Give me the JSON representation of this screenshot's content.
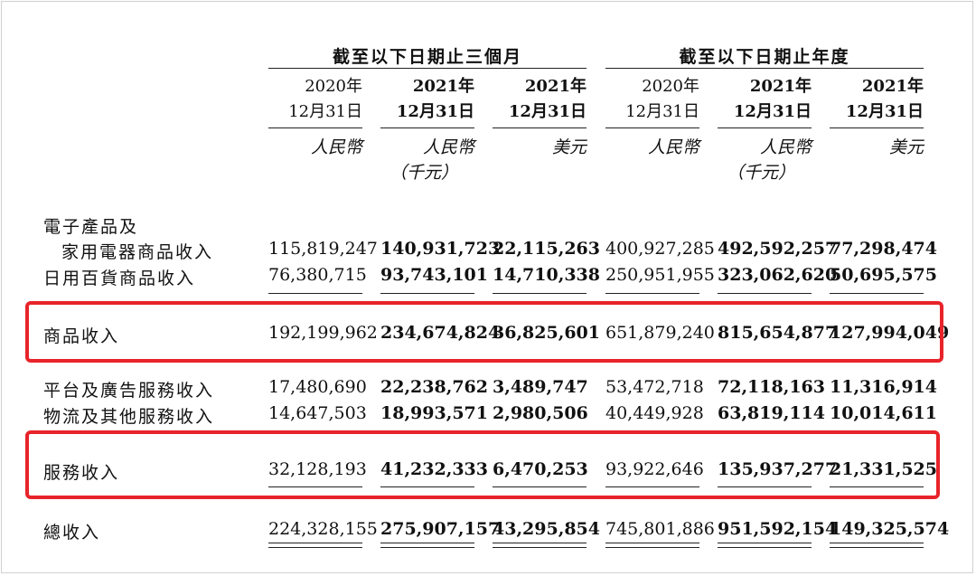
{
  "header": {
    "group_three_months": "截至以下日期止三個月",
    "group_year": "截至以下日期止年度",
    "columns": [
      {
        "year": "2020年",
        "date": "12月31日",
        "currency": "人民幣",
        "unit": "",
        "bold": false
      },
      {
        "year": "2021年",
        "date": "12月31日",
        "currency": "人民幣",
        "unit": "（千元）",
        "bold": true
      },
      {
        "year": "2021年",
        "date": "12月31日",
        "currency": "美元",
        "unit": "",
        "bold": true
      },
      {
        "year": "2020年",
        "date": "12月31日",
        "currency": "人民幣",
        "unit": "",
        "bold": false
      },
      {
        "year": "2021年",
        "date": "12月31日",
        "currency": "人民幣",
        "unit": "（千元）",
        "bold": true
      },
      {
        "year": "2021年",
        "date": "12月31日",
        "currency": "美元",
        "unit": "",
        "bold": true
      }
    ]
  },
  "rows": {
    "electronics_line1": {
      "label": "電子產品及"
    },
    "electronics": {
      "label": "家用電器商品收入",
      "values": [
        "115,819,247",
        "140,931,723",
        "22,115,263",
        "400,927,285",
        "492,592,257",
        "77,298,474"
      ]
    },
    "general": {
      "label": "日用百貨商品收入",
      "values": [
        "76,380,715",
        "93,743,101",
        "14,710,338",
        "250,951,955",
        "323,062,620",
        "50,695,575"
      ]
    },
    "product": {
      "label": "商品收入",
      "values": [
        "192,199,962",
        "234,674,824",
        "36,825,601",
        "651,879,240",
        "815,654,877",
        "127,994,049"
      ]
    },
    "platform": {
      "label": "平台及廣告服務收入",
      "values": [
        "17,480,690",
        "22,238,762",
        "3,489,747",
        "53,472,718",
        "72,118,163",
        "11,316,914"
      ]
    },
    "logistics": {
      "label": "物流及其他服務收入",
      "values": [
        "14,647,503",
        "18,993,571",
        "2,980,506",
        "40,449,928",
        "63,819,114",
        "10,014,611"
      ]
    },
    "service": {
      "label": "服務收入",
      "values": [
        "32,128,193",
        "41,232,333",
        "6,470,253",
        "93,922,646",
        "135,937,277",
        "21,331,525"
      ]
    },
    "total": {
      "label": "總收入",
      "values": [
        "224,328,155",
        "275,907,157",
        "43,295,854",
        "745,801,886",
        "951,592,154",
        "149,325,574"
      ]
    }
  },
  "highlight_color": "#e8232a"
}
